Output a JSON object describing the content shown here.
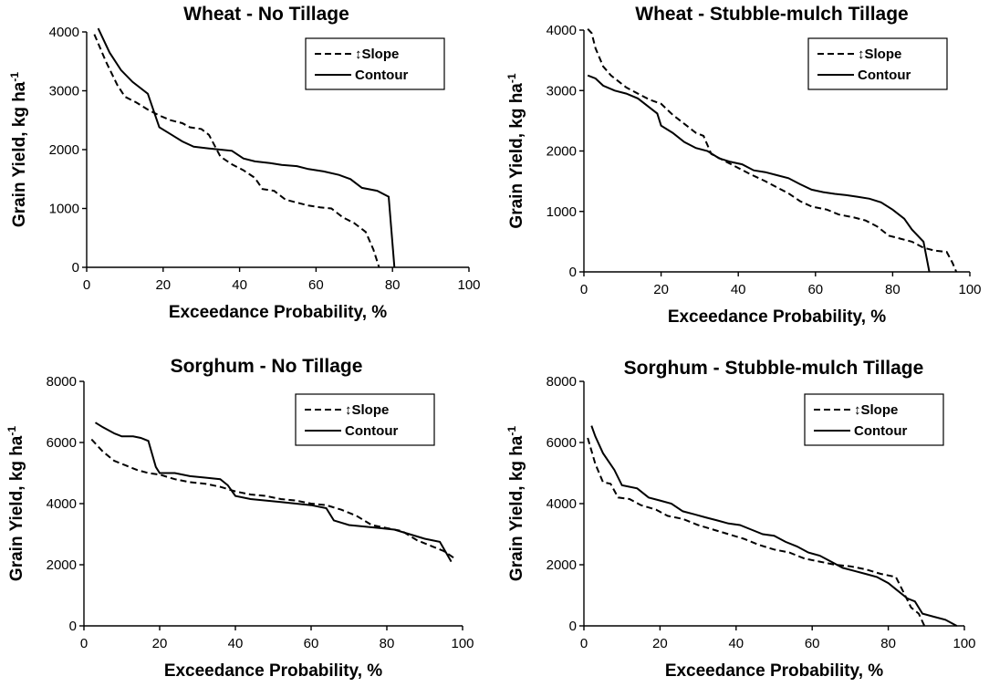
{
  "chart_data": [
    {
      "type": "line",
      "title": "Wheat - No Tillage",
      "xlabel": "Exceedance Probability, %",
      "ylabel": "Grain Yield, kg ha",
      "ylabel_superscript": "-1",
      "xlim": [
        0,
        100
      ],
      "ylim": [
        0,
        4000
      ],
      "xticks": [
        0,
        20,
        40,
        60,
        80,
        100
      ],
      "yticks": [
        0,
        1000,
        2000,
        3000,
        4000
      ],
      "legend": [
        "↕Slope",
        "Contour"
      ],
      "series": [
        {
          "name": "↕Slope",
          "style": "dashed",
          "x": [
            2,
            5,
            8,
            10,
            13,
            16,
            19,
            22,
            25,
            27,
            30,
            32,
            35,
            38,
            41,
            44,
            46,
            49,
            52,
            55,
            58,
            61,
            64,
            67,
            70,
            73,
            75,
            76.5
          ],
          "y": [
            3960,
            3500,
            3100,
            2900,
            2800,
            2680,
            2580,
            2500,
            2450,
            2380,
            2350,
            2250,
            1880,
            1750,
            1650,
            1520,
            1330,
            1300,
            1150,
            1100,
            1050,
            1020,
            1000,
            850,
            750,
            600,
            300,
            0
          ]
        },
        {
          "name": "Contour",
          "style": "solid",
          "x": [
            3,
            6,
            9,
            12,
            16,
            19,
            22,
            25,
            28,
            32,
            35,
            38,
            41,
            44,
            48,
            51,
            55,
            58,
            62,
            66,
            69,
            72,
            76,
            79,
            80.5
          ],
          "y": [
            4060,
            3650,
            3350,
            3150,
            2950,
            2380,
            2260,
            2140,
            2050,
            2020,
            2000,
            1980,
            1850,
            1800,
            1770,
            1740,
            1720,
            1670,
            1630,
            1570,
            1500,
            1350,
            1300,
            1200,
            0
          ]
        }
      ]
    },
    {
      "type": "line",
      "title": "Wheat - Stubble-mulch Tillage",
      "xlabel": "Exceedance Probability, %",
      "ylabel": "Grain Yield, kg ha",
      "ylabel_superscript": "-1",
      "xlim": [
        0,
        100
      ],
      "ylim": [
        0,
        4000
      ],
      "xticks": [
        0,
        20,
        40,
        60,
        80,
        100
      ],
      "yticks": [
        0,
        1000,
        2000,
        3000,
        4000
      ],
      "legend": [
        "↕Slope",
        "Contour"
      ],
      "series": [
        {
          "name": "↕Slope",
          "style": "dashed",
          "x": [
            1,
            2,
            3,
            5,
            7,
            9,
            11,
            14,
            17,
            20,
            23,
            26,
            29,
            31,
            33,
            36,
            40,
            43,
            47,
            50,
            53,
            56,
            59,
            63,
            66,
            70,
            73,
            76,
            79,
            82,
            85,
            88,
            91,
            94,
            95.5,
            96.5
          ],
          "y": [
            4020,
            3950,
            3700,
            3400,
            3250,
            3150,
            3050,
            2950,
            2850,
            2780,
            2600,
            2450,
            2300,
            2250,
            1950,
            1850,
            1720,
            1620,
            1500,
            1400,
            1300,
            1170,
            1080,
            1030,
            950,
            900,
            850,
            750,
            600,
            550,
            500,
            400,
            350,
            330,
            150,
            0
          ]
        },
        {
          "name": "Contour",
          "style": "solid",
          "x": [
            1,
            3,
            5,
            8,
            11,
            14,
            17,
            19,
            20,
            23,
            26,
            29,
            32,
            35,
            38,
            41,
            44,
            47,
            50,
            53,
            56,
            59,
            62,
            65,
            68,
            71,
            74,
            77,
            80,
            83,
            85,
            88,
            89.5
          ],
          "y": [
            3250,
            3200,
            3080,
            3000,
            2950,
            2870,
            2720,
            2620,
            2420,
            2300,
            2150,
            2050,
            2000,
            1880,
            1820,
            1780,
            1680,
            1650,
            1600,
            1550,
            1450,
            1360,
            1320,
            1290,
            1270,
            1240,
            1210,
            1150,
            1030,
            880,
            700,
            500,
            0
          ]
        }
      ]
    },
    {
      "type": "line",
      "title": "Sorghum - No Tillage",
      "xlabel": "Exceedance Probability, %",
      "ylabel": "Grain Yield, kg ha",
      "ylabel_superscript": "-1",
      "xlim": [
        0,
        100
      ],
      "ylim": [
        0,
        8000
      ],
      "xticks": [
        0,
        20,
        40,
        60,
        80,
        100
      ],
      "yticks": [
        0,
        2000,
        4000,
        6000,
        8000
      ],
      "legend": [
        "↕Slope",
        "Contour"
      ],
      "series": [
        {
          "name": "↕Slope",
          "style": "dashed",
          "x": [
            2,
            5,
            8,
            11,
            14,
            17,
            20,
            24,
            28,
            32,
            36,
            40,
            44,
            48,
            52,
            56,
            60,
            64,
            68,
            72,
            76,
            80,
            84,
            88,
            92,
            95,
            98
          ],
          "y": [
            6100,
            5700,
            5400,
            5250,
            5100,
            5000,
            4950,
            4800,
            4700,
            4650,
            4550,
            4400,
            4300,
            4250,
            4150,
            4100,
            4000,
            3950,
            3800,
            3600,
            3300,
            3200,
            3100,
            2800,
            2600,
            2450,
            2200
          ]
        },
        {
          "name": "Contour",
          "style": "solid",
          "x": [
            3,
            5,
            8,
            10,
            13,
            15,
            17,
            19,
            20,
            24,
            28,
            32,
            36,
            38,
            40,
            44,
            48,
            52,
            56,
            60,
            64,
            66,
            70,
            74,
            78,
            82,
            86,
            90,
            94,
            97
          ],
          "y": [
            6650,
            6500,
            6300,
            6200,
            6200,
            6150,
            6050,
            5200,
            5000,
            5000,
            4900,
            4850,
            4800,
            4600,
            4250,
            4150,
            4100,
            4050,
            4000,
            3950,
            3850,
            3450,
            3300,
            3250,
            3200,
            3150,
            3000,
            2850,
            2750,
            2100
          ]
        }
      ]
    },
    {
      "type": "line",
      "title": "Sorghum - Stubble-mulch Tillage",
      "xlabel": "Exceedance Probability, %",
      "ylabel": "Grain Yield, kg ha",
      "ylabel_superscript": "-1",
      "xlim": [
        0,
        100
      ],
      "ylim": [
        0,
        8000
      ],
      "xticks": [
        0,
        20,
        40,
        60,
        80,
        100
      ],
      "yticks": [
        0,
        2000,
        4000,
        6000,
        8000
      ],
      "legend": [
        "↕Slope",
        "Contour"
      ],
      "series": [
        {
          "name": "↕Slope",
          "style": "dashed",
          "x": [
            1,
            3,
            5,
            7,
            9,
            12,
            15,
            19,
            22,
            26,
            30,
            34,
            38,
            42,
            46,
            50,
            54,
            58,
            62,
            66,
            70,
            74,
            78,
            82,
            84,
            86,
            88,
            89.5
          ],
          "y": [
            6150,
            5300,
            4700,
            4650,
            4200,
            4150,
            3950,
            3800,
            3600,
            3500,
            3300,
            3150,
            3000,
            2850,
            2650,
            2500,
            2400,
            2200,
            2100,
            2000,
            1950,
            1850,
            1700,
            1600,
            1100,
            600,
            400,
            0
          ]
        },
        {
          "name": "Contour",
          "style": "solid",
          "x": [
            2,
            3,
            5,
            8,
            10,
            14,
            17,
            20,
            23,
            26,
            29,
            32,
            35,
            38,
            41,
            44,
            47,
            50,
            53,
            56,
            59,
            62,
            65,
            68,
            71,
            74,
            77,
            80,
            82,
            85,
            87,
            89,
            92,
            95,
            98
          ],
          "y": [
            6550,
            6200,
            5650,
            5100,
            4600,
            4500,
            4200,
            4100,
            4000,
            3750,
            3650,
            3550,
            3450,
            3350,
            3300,
            3150,
            3000,
            2950,
            2750,
            2600,
            2400,
            2300,
            2100,
            1900,
            1800,
            1700,
            1600,
            1400,
            1200,
            900,
            800,
            400,
            300,
            200,
            0
          ]
        }
      ]
    }
  ]
}
